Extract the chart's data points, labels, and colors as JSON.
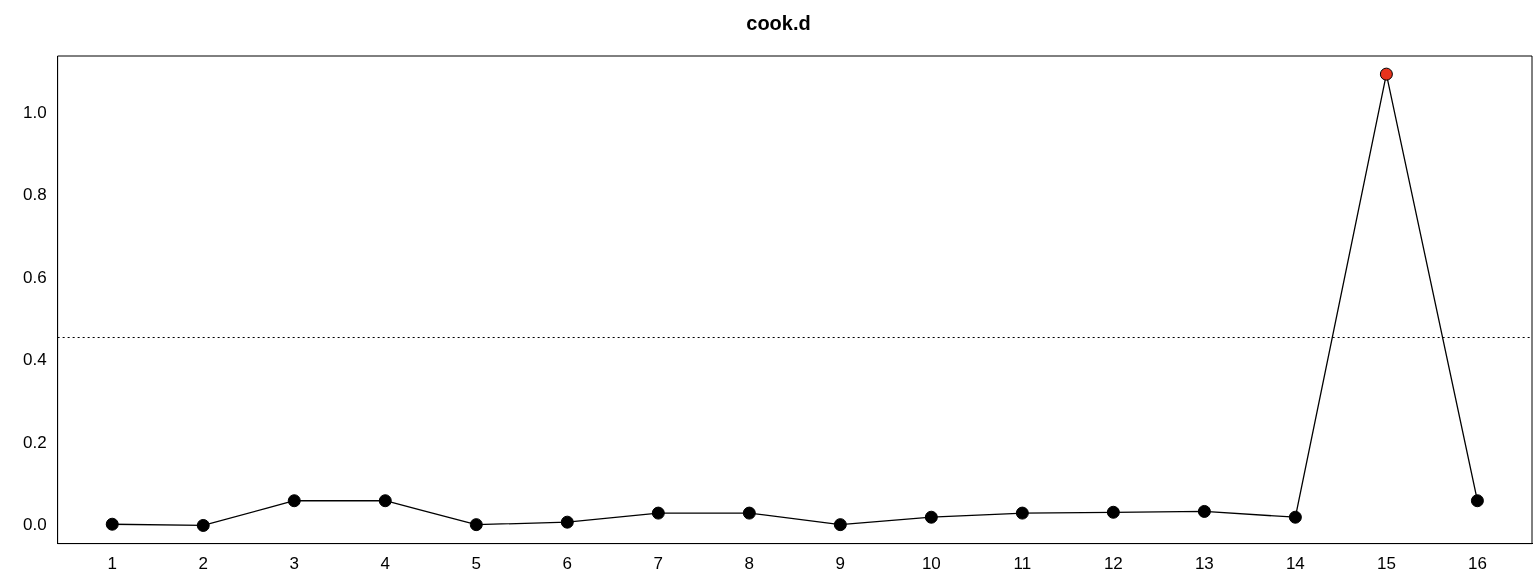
{
  "chart_data": {
    "type": "line",
    "title": "cook.d",
    "x": [
      1,
      2,
      3,
      4,
      5,
      6,
      7,
      8,
      9,
      10,
      11,
      12,
      13,
      14,
      15,
      16
    ],
    "series": [
      {
        "color": "#000000",
        "colors": [
          "#000000",
          "#000000",
          "#000000",
          "#000000",
          "#000000",
          "#000000",
          "#000000",
          "#000000",
          "#000000",
          "#000000",
          "#000000",
          "#000000",
          "#000000",
          "#000000",
          "#e8331c",
          "#000000"
        ],
        "values": [
          0.003,
          0.0,
          0.06,
          0.06,
          0.002,
          0.008,
          0.03,
          0.03,
          0.002,
          0.02,
          0.03,
          0.032,
          0.034,
          0.02,
          1.095,
          0.06
        ]
      }
    ],
    "xlim": [
      0.4,
      16.6
    ],
    "xticks": [
      1,
      2,
      3,
      4,
      5,
      6,
      7,
      8,
      9,
      10,
      11,
      12,
      13,
      14,
      15,
      16
    ],
    "ylim": [
      -0.044,
      1.139
    ],
    "yticks": [
      {
        "value": 0,
        "label": "0.0"
      },
      {
        "value": 0.2,
        "label": "0.2"
      },
      {
        "value": 0.4,
        "label": "0.4"
      },
      {
        "value": 0.6,
        "label": "0.6"
      },
      {
        "value": 0.8,
        "label": "0.8"
      },
      {
        "value": 1,
        "label": "1.0"
      }
    ],
    "ref_lines": [
      {
        "axis": "y",
        "value": 0.456,
        "line_style": "dotted",
        "color": "#000000"
      }
    ],
    "grid": false,
    "legend": false,
    "marker": "circle",
    "line_style": "solid"
  }
}
